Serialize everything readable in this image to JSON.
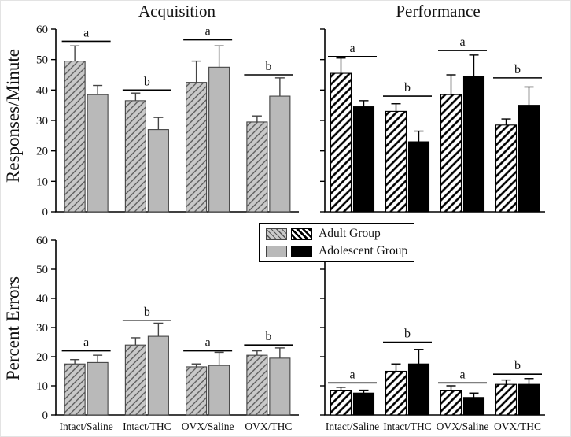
{
  "labels": {
    "title_left": "Acquisition",
    "title_right": "Performance",
    "y_top": "Responses/Minute",
    "y_bottom": "Percent Errors"
  },
  "colors": {
    "gray_solid": "#b9b9b9",
    "gray_hatch_bg": "#c9c9c9",
    "gray_hatch_line": "#555555",
    "black": "#000000",
    "white": "#ffffff",
    "axis": "#000000"
  },
  "legend": {
    "items": [
      {
        "label": "Adult Group",
        "swatches": [
          "hatch-gray",
          "hatch-black"
        ]
      },
      {
        "label": "Adolescent Group",
        "swatches": [
          "solid-gray",
          "solid-black"
        ]
      }
    ]
  },
  "chart_data": [
    {
      "type": "bar",
      "panel": "acquisition-responses",
      "title": "Acquisition",
      "ylabel": "Responses/Minute",
      "ylim": [
        0,
        60
      ],
      "yticks": [
        0,
        10,
        20,
        30,
        40,
        50,
        60
      ],
      "show_ytick_labels": true,
      "show_xtick_labels": false,
      "categories": [
        "Intact/Saline",
        "Intact/THC",
        "OVX/Saline",
        "OVX/THC"
      ],
      "series": [
        {
          "name": "Adult Group",
          "style": "hatch-gray",
          "values": [
            49.5,
            36.5,
            42.5,
            29.5
          ],
          "errors": [
            5,
            2.5,
            7,
            2
          ]
        },
        {
          "name": "Adolescent Group",
          "style": "solid-gray",
          "values": [
            38.5,
            27,
            47.5,
            38
          ],
          "errors": [
            3,
            4,
            7,
            6
          ]
        }
      ],
      "significance": [
        {
          "label": "a",
          "y": 56
        },
        {
          "label": "b",
          "y": 40
        },
        {
          "label": "a",
          "y": 56.5
        },
        {
          "label": "b",
          "y": 45
        }
      ]
    },
    {
      "type": "bar",
      "panel": "performance-responses",
      "title": "Performance",
      "ylabel": "Responses/Minute",
      "ylim": [
        0,
        60
      ],
      "yticks": [
        0,
        10,
        20,
        30,
        40,
        50,
        60
      ],
      "show_ytick_labels": false,
      "show_xtick_labels": false,
      "categories": [
        "Intact/Saline",
        "Intact/THC",
        "OVX/Saline",
        "OVX/THC"
      ],
      "series": [
        {
          "name": "Adult Group",
          "style": "hatch-black",
          "values": [
            45.5,
            33,
            38.5,
            28.5
          ],
          "errors": [
            5,
            2.5,
            6.5,
            2
          ]
        },
        {
          "name": "Adolescent Group",
          "style": "solid-black",
          "values": [
            34.5,
            23,
            44.5,
            35
          ],
          "errors": [
            2,
            3.5,
            7,
            6
          ]
        }
      ],
      "significance": [
        {
          "label": "a",
          "y": 51
        },
        {
          "label": "b",
          "y": 38
        },
        {
          "label": "a",
          "y": 53
        },
        {
          "label": "b",
          "y": 44
        }
      ]
    },
    {
      "type": "bar",
      "panel": "acquisition-errors",
      "title": "Acquisition",
      "ylabel": "Percent Errors",
      "ylim": [
        0,
        60
      ],
      "yticks": [
        0,
        10,
        20,
        30,
        40,
        50,
        60
      ],
      "show_ytick_labels": true,
      "show_xtick_labels": true,
      "categories": [
        "Intact/Saline",
        "Intact/THC",
        "OVX/Saline",
        "OVX/THC"
      ],
      "series": [
        {
          "name": "Adult Group",
          "style": "hatch-gray",
          "values": [
            17.5,
            24,
            16.5,
            20.5
          ],
          "errors": [
            1.5,
            2.5,
            1,
            1.5
          ]
        },
        {
          "name": "Adolescent Group",
          "style": "solid-gray",
          "values": [
            18,
            27,
            17,
            19.5
          ],
          "errors": [
            2.5,
            4.5,
            4.5,
            3.5
          ]
        }
      ],
      "significance": [
        {
          "label": "a",
          "y": 22
        },
        {
          "label": "b",
          "y": 32.5
        },
        {
          "label": "a",
          "y": 22
        },
        {
          "label": "b",
          "y": 24
        }
      ]
    },
    {
      "type": "bar",
      "panel": "performance-errors",
      "title": "Performance",
      "ylabel": "Percent Errors",
      "ylim": [
        0,
        60
      ],
      "yticks": [
        0,
        10,
        20,
        30,
        40,
        50,
        60
      ],
      "show_ytick_labels": false,
      "show_xtick_labels": true,
      "categories": [
        "Intact/Saline",
        "Intact/THC",
        "OVX/Saline",
        "OVX/THC"
      ],
      "series": [
        {
          "name": "Adult Group",
          "style": "hatch-black",
          "values": [
            8.5,
            15,
            8.5,
            10.5
          ],
          "errors": [
            1,
            2.5,
            1.5,
            1.5
          ]
        },
        {
          "name": "Adolescent Group",
          "style": "solid-black",
          "values": [
            7.5,
            17.5,
            6,
            10.5
          ],
          "errors": [
            1,
            5,
            1.5,
            2
          ]
        }
      ],
      "significance": [
        {
          "label": "a",
          "y": 11
        },
        {
          "label": "b",
          "y": 25
        },
        {
          "label": "a",
          "y": 11
        },
        {
          "label": "b",
          "y": 14
        }
      ]
    }
  ]
}
